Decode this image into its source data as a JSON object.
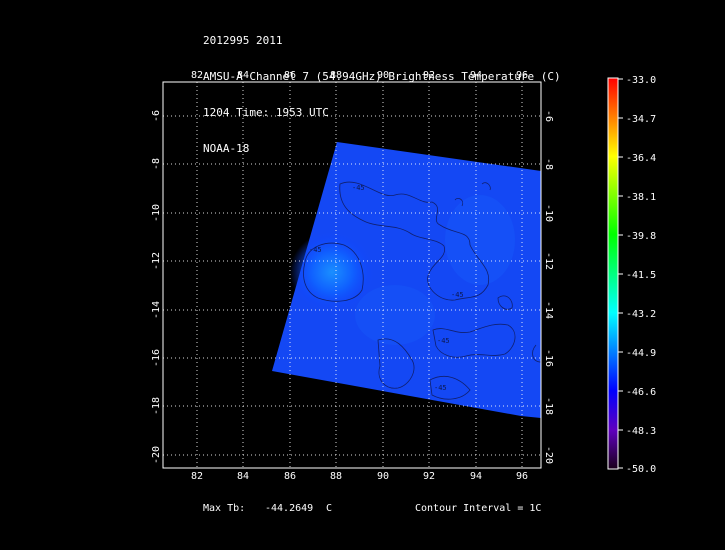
{
  "header": {
    "line1": "2012995 2011",
    "line2": "AMSU-A Channel 7 (54.94GHz) Brightness Temperature (C)",
    "line3": "1204 Time: 1953 UTC",
    "line4": "NOAA-18"
  },
  "map": {
    "lon_ticks": [
      "82",
      "84",
      "86",
      "88",
      "90",
      "92",
      "94",
      "96"
    ],
    "lat_ticks": [
      "-8",
      "-10",
      "-12",
      "-14",
      "-16",
      "-18",
      "-20"
    ],
    "lat_ticks_top": [
      "-6"
    ],
    "contour_labels": [
      "-45",
      "-45",
      "-45",
      "-45",
      "-45"
    ]
  },
  "colorbar": {
    "labels": [
      "-33.0",
      "-34.7",
      "-36.4",
      "-38.1",
      "-39.8",
      "-41.5",
      "-43.2",
      "-44.9",
      "-46.6",
      "-48.3",
      "-50.0"
    ],
    "colors": [
      "#ff0000",
      "#ff7f00",
      "#ffff00",
      "#7fff00",
      "#00ff00",
      "#00ff7f",
      "#00ffff",
      "#007fff",
      "#0000ff",
      "#5f00bf",
      "#1a001a"
    ]
  },
  "footer": {
    "max_label": "Max Tb:",
    "max_value": "-44.2649",
    "max_unit": "C",
    "contour": "Contour Interval = 1C"
  }
}
